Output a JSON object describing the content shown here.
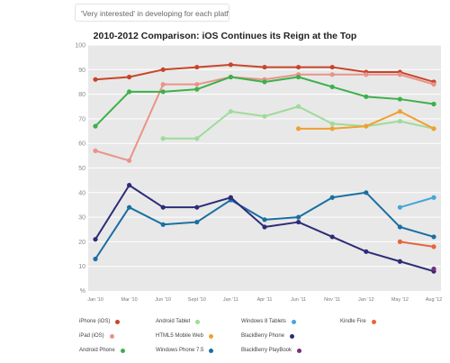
{
  "caption": "'Very interested' in developing for each platform",
  "chart_data": {
    "type": "line",
    "title": "2010-2012 Comparison: iOS Continues its Reign at the Top",
    "ylabel": "%",
    "ylim": [
      0,
      100
    ],
    "yticks": [
      10,
      20,
      30,
      40,
      50,
      60,
      70,
      80,
      90,
      100
    ],
    "categories": [
      "Jan '10",
      "Mar '10",
      "Jun '10",
      "Sept '10",
      "Jan '11",
      "Apr '11",
      "Jun '11",
      "Nov '11",
      "Jan '12",
      "May '12",
      "Aug '12"
    ],
    "series": [
      {
        "name": "iPhone (iOS)",
        "color": "#c8452b",
        "values": [
          86,
          87,
          90,
          91,
          92,
          91,
          91,
          91,
          89,
          89,
          85
        ]
      },
      {
        "name": "iPad (iOS)",
        "color": "#e8948a",
        "values": [
          57,
          53,
          84,
          84,
          87,
          86,
          88,
          88,
          88,
          88,
          84
        ]
      },
      {
        "name": "Android Phone",
        "color": "#3db04a",
        "values": [
          67,
          81,
          81,
          82,
          87,
          85,
          87,
          83,
          79,
          78,
          76
        ]
      },
      {
        "name": "Android Tablet",
        "color": "#9edb9a",
        "values": [
          null,
          null,
          62,
          62,
          73,
          71,
          75,
          68,
          67,
          69,
          66
        ]
      },
      {
        "name": "HTML5 Mobile Web",
        "color": "#f0a030",
        "values": [
          null,
          null,
          null,
          null,
          null,
          null,
          66,
          66,
          67,
          73,
          66
        ]
      },
      {
        "name": "Windows Phone 7.5",
        "color": "#1a6fa0",
        "values": [
          13,
          34,
          27,
          28,
          37,
          29,
          30,
          38,
          40,
          26,
          22
        ]
      },
      {
        "name": "Windows 8 Tablets",
        "color": "#45a6d6",
        "values": [
          null,
          null,
          null,
          null,
          null,
          null,
          null,
          null,
          null,
          34,
          38
        ]
      },
      {
        "name": "BlackBerry Phone",
        "color": "#2e2c78",
        "values": [
          21,
          43,
          34,
          34,
          38,
          26,
          28,
          22,
          16,
          12,
          8
        ]
      },
      {
        "name": "Kindle Fire",
        "color": "#e8643c",
        "values": [
          null,
          null,
          null,
          null,
          null,
          null,
          null,
          null,
          null,
          20,
          18
        ]
      },
      {
        "name": "BlackBerry PlayBook",
        "color": "#7a2f7a",
        "values": [
          null,
          null,
          null,
          null,
          null,
          null,
          null,
          null,
          null,
          null,
          9
        ]
      }
    ],
    "grid": true,
    "legend_position": "bottom"
  }
}
